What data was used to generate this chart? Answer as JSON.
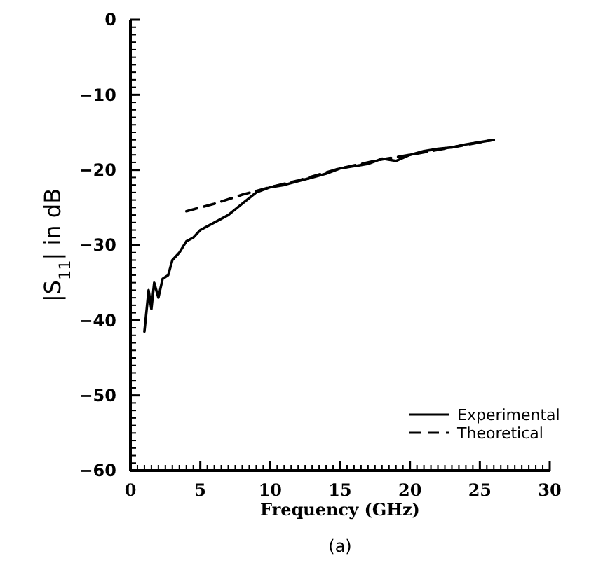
{
  "chart_data": {
    "type": "line",
    "xlabel": "Frequency (GHz)",
    "ylabel": "|S$_{11}$| in dB",
    "annotations": [
      "(a)"
    ],
    "xlim": [
      0,
      30
    ],
    "xticks": [
      0,
      5,
      10,
      15,
      20,
      25,
      30
    ],
    "ylim": [
      -60,
      0
    ],
    "yticks": [
      -60,
      -50,
      -40,
      -30,
      -20,
      -10,
      0
    ],
    "grid": false,
    "legend": "bottom right",
    "series": [
      {
        "name": "Experimental",
        "color": "#000000",
        "line_style": "solid",
        "x": [
          1,
          1.3,
          1.5,
          1.7,
          2,
          2.3,
          2.7,
          3,
          3.5,
          4,
          4.5,
          5,
          6,
          7,
          8,
          9,
          10,
          11,
          12,
          13,
          14,
          15,
          16,
          17,
          18,
          19,
          20,
          21,
          22,
          23,
          24,
          25,
          26
        ],
        "values": [
          -41.5,
          -36,
          -38.5,
          -35,
          -37,
          -34.5,
          -34,
          -32,
          -31,
          -29.5,
          -29,
          -28,
          -27,
          -26,
          -24.5,
          -23,
          -22.3,
          -22,
          -21.5,
          -21,
          -20.5,
          -19.8,
          -19.5,
          -19.2,
          -18.5,
          -18.8,
          -18,
          -17.5,
          -17.2,
          -17,
          -16.6,
          -16.3,
          -16
        ]
      },
      {
        "name": "Theoretical",
        "color": "#000000",
        "line_style": "dashed",
        "x": [
          4,
          6,
          8,
          10,
          12,
          15,
          18,
          20,
          23,
          26
        ],
        "values": [
          -25.5,
          -24.5,
          -23.3,
          -22.3,
          -21.4,
          -19.8,
          -18.6,
          -18,
          -17,
          -16
        ]
      }
    ]
  }
}
